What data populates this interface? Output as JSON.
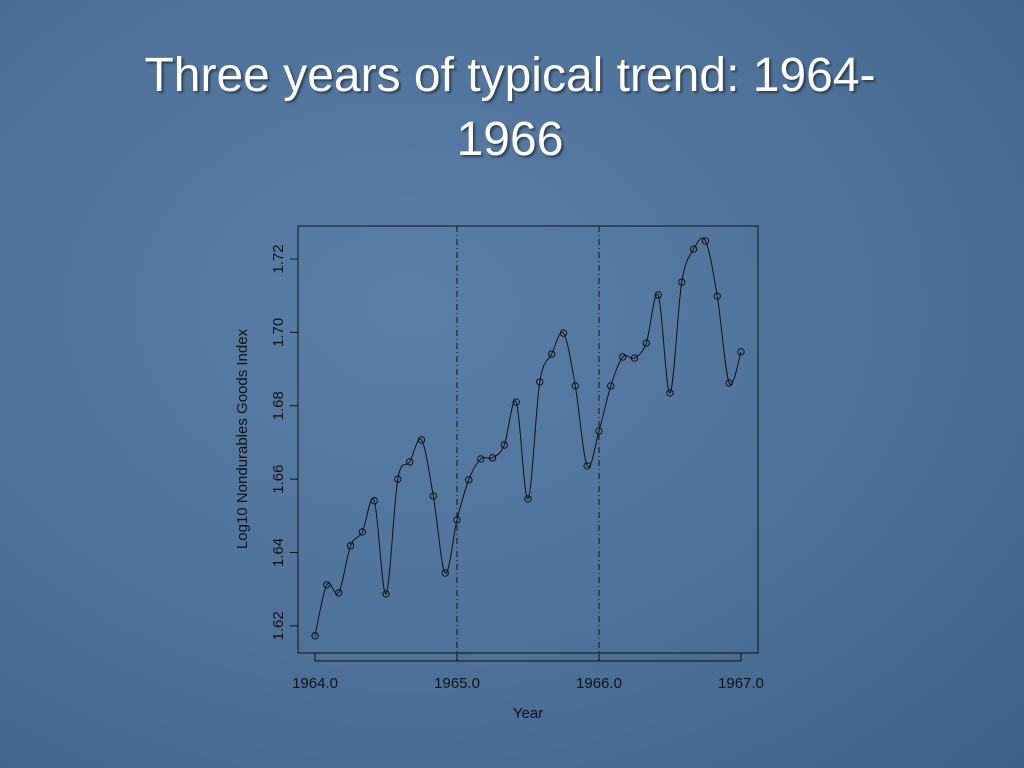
{
  "chart_data": {
    "type": "line",
    "title": "Three years of typical trend: 1964-1966",
    "xlabel": "Year",
    "ylabel": "Log10 Nondurables Goods Index",
    "x": [
      1964.0,
      1964.083,
      1964.167,
      1964.25,
      1964.333,
      1964.417,
      1964.5,
      1964.583,
      1964.667,
      1964.75,
      1964.833,
      1964.917,
      1965.0,
      1965.083,
      1965.167,
      1965.25,
      1965.333,
      1965.417,
      1965.5,
      1965.583,
      1965.667,
      1965.75,
      1965.833,
      1965.917,
      1966.0,
      1966.083,
      1966.167,
      1966.25,
      1966.333,
      1966.417,
      1966.5,
      1966.583,
      1966.667,
      1966.75,
      1966.833,
      1966.917,
      1967.0
    ],
    "series": [
      {
        "color": "#111111",
        "markers": true,
        "smooth": true,
        "values": [
          1.6173,
          1.6312,
          1.629,
          1.6418,
          1.6456,
          1.6541,
          1.6287,
          1.66,
          1.6647,
          1.6707,
          1.6554,
          1.6344,
          1.6489,
          1.6598,
          1.6655,
          1.6658,
          1.6693,
          1.681,
          1.6546,
          1.6865,
          1.6941,
          1.6998,
          1.6854,
          1.6636,
          1.6731,
          1.6854,
          1.6933,
          1.693,
          1.6971,
          1.7102,
          1.6835,
          1.7137,
          1.7227,
          1.7249,
          1.7099,
          1.6862,
          1.6947
        ]
      }
    ],
    "xlim": [
      1963.88,
      1967.12
    ],
    "ylim": [
      1.6126,
      1.729
    ],
    "xticks": [
      {
        "value": 1964,
        "label": "1964.0"
      },
      {
        "value": 1965,
        "label": "1965.0"
      },
      {
        "value": 1966,
        "label": "1966.0"
      },
      {
        "value": 1967,
        "label": "1967.0"
      }
    ],
    "yticks": [
      1.62,
      1.64,
      1.66,
      1.68,
      {
        "value": 1.7,
        "label": "1.70"
      },
      1.72
    ],
    "vlines": [
      1965,
      1966
    ],
    "grid": false
  }
}
